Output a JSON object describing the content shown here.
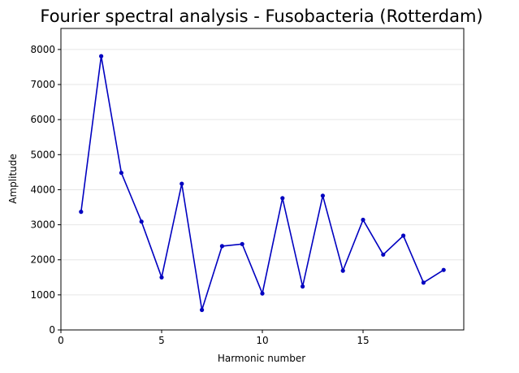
{
  "chart_data": {
    "type": "line",
    "title": "Fourier spectral analysis - Fusobacteria (Rotterdam)",
    "xlabel": "Harmonic number",
    "ylabel": "Amplitude",
    "xlim": [
      0,
      20
    ],
    "ylim": [
      0,
      8600
    ],
    "xticks": [
      0,
      5,
      10,
      15
    ],
    "yticks": [
      0,
      1000,
      2000,
      3000,
      4000,
      5000,
      6000,
      7000,
      8000
    ],
    "grid": "y-major",
    "color": "#0000c0",
    "x": [
      1,
      2,
      3,
      4,
      5,
      6,
      7,
      8,
      9,
      10,
      11,
      12,
      13,
      14,
      15,
      16,
      17,
      18,
      19
    ],
    "series": [
      {
        "values": [
          3370,
          7810,
          4480,
          3090,
          1500,
          4170,
          570,
          2390,
          2450,
          1040,
          3760,
          1240,
          3830,
          1690,
          3140,
          2150,
          2690,
          1350,
          1710
        ]
      }
    ]
  }
}
